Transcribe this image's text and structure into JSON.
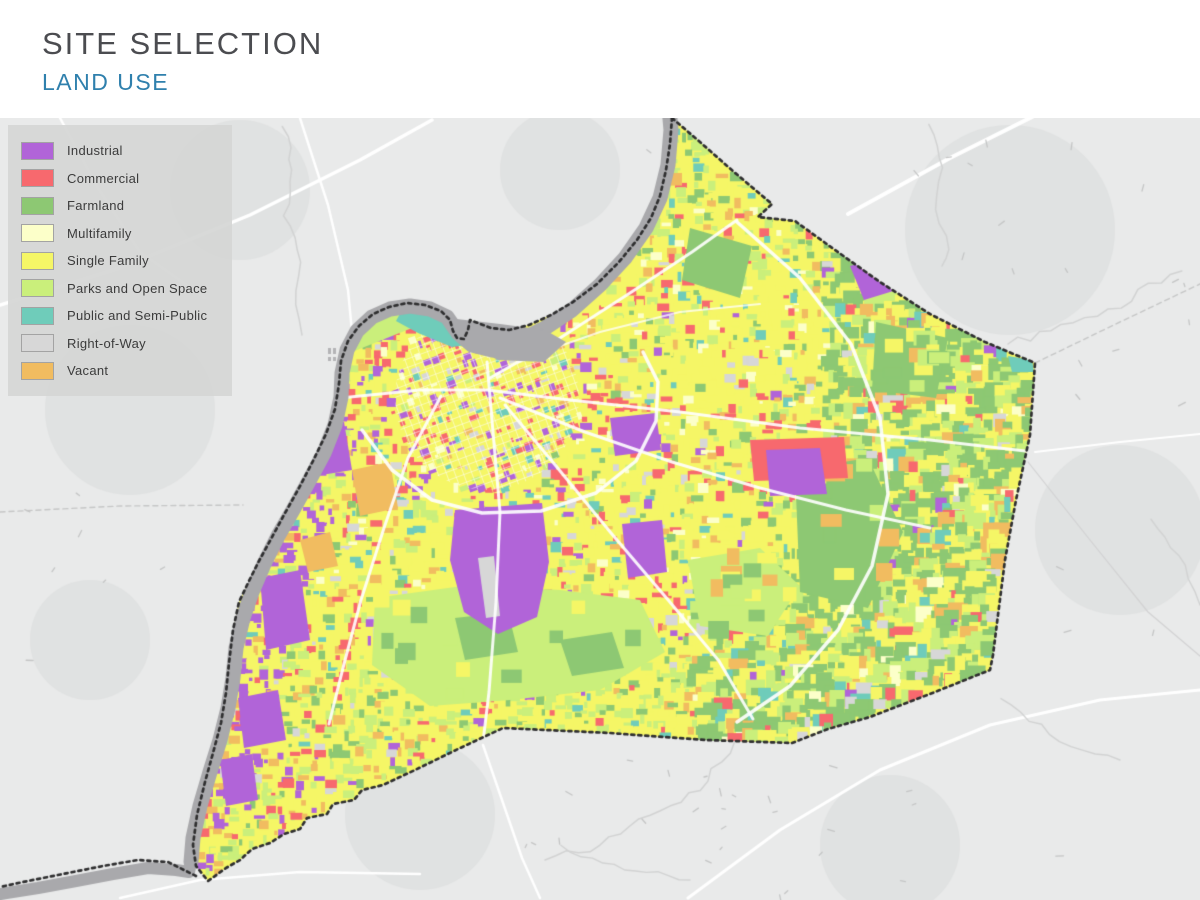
{
  "header": {
    "title": "SITE SELECTION",
    "subtitle": "LAND USE"
  },
  "legend": {
    "items": [
      {
        "key": "industrial",
        "label": "Industrial",
        "color": "#b164d8"
      },
      {
        "key": "commercial",
        "label": "Commercial",
        "color": "#f7696e"
      },
      {
        "key": "farmland",
        "label": "Farmland",
        "color": "#8dc873"
      },
      {
        "key": "multifamily",
        "label": "Multifamily",
        "color": "#fcffc9"
      },
      {
        "key": "single_family",
        "label": "Single Family",
        "color": "#f5f666"
      },
      {
        "key": "parks",
        "label": "Parks and Open Space",
        "color": "#caef7b"
      },
      {
        "key": "public",
        "label": "Public and Semi-Public",
        "color": "#6fccba"
      },
      {
        "key": "right_of_way",
        "label": "Right-of-Way",
        "color": "#d7d7d7"
      },
      {
        "key": "vacant",
        "label": "Vacant",
        "color": "#f1bc60"
      }
    ]
  },
  "map": {
    "background_color": "#e9eaea",
    "river_color": "#a9a9ac",
    "boundary_color": "#2f2f30",
    "road_color": "#ffffff",
    "stream_color": "#d2d3d3"
  },
  "colors": {
    "title": "#4b4c50",
    "subtitle": "#2f80ad",
    "legend_bg": "rgba(213,214,213,0.93)",
    "legend_text": "#3b3b3b"
  }
}
